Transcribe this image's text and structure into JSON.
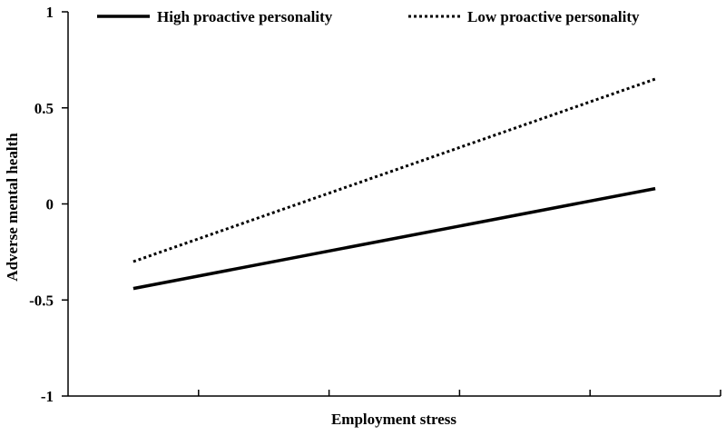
{
  "chart_data": {
    "type": "line",
    "title": "",
    "xlabel": "Employment stress",
    "ylabel": "Adverse mental health",
    "ylim": [
      -1,
      1
    ],
    "yticks": [
      1,
      0.5,
      0,
      -0.5,
      -1
    ],
    "ytick_labels": [
      "1",
      "0.5",
      "0",
      "-0.5",
      "-1"
    ],
    "x_categories": 5,
    "x_points": [
      1,
      5
    ],
    "grid": false,
    "legend_position": "top",
    "series": [
      {
        "name": "High proactive personality",
        "style": "solid",
        "x": [
          1,
          5
        ],
        "y": [
          -0.44,
          0.08
        ],
        "color": "#000000"
      },
      {
        "name": "Low proactive personality",
        "style": "dotted",
        "x": [
          1,
          5
        ],
        "y": [
          -0.3,
          0.65
        ],
        "color": "#000000"
      }
    ]
  }
}
